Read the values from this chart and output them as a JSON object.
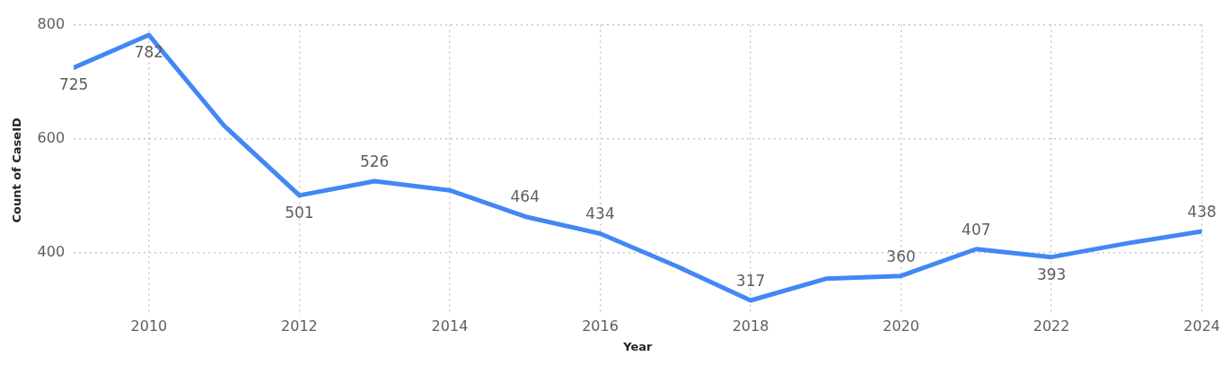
{
  "chart_data": {
    "type": "line",
    "xlabel": "Year",
    "ylabel": "Count of CaseID",
    "x": [
      2009,
      2010,
      2011,
      2012,
      2013,
      2014,
      2015,
      2016,
      2017,
      2018,
      2019,
      2020,
      2021,
      2022,
      2023,
      2024
    ],
    "series": [
      {
        "color": "#4287f5",
        "values": [
          725,
          782,
          623,
          501,
          526,
          510,
          464,
          434,
          378,
          317,
          355,
          360,
          407,
          393,
          417,
          438
        ],
        "value_labels": [
          "725",
          "782",
          null,
          "501",
          "526",
          null,
          "464",
          "434",
          null,
          "317",
          null,
          "360",
          "407",
          "393",
          null,
          "438"
        ]
      }
    ],
    "xlim": [
      2009,
      2024
    ],
    "xticks": [
      2010,
      2012,
      2014,
      2016,
      2018,
      2020,
      2022,
      2024
    ],
    "ylim": [
      290,
      800
    ],
    "yticks": [
      400,
      600,
      800
    ],
    "grid": true,
    "line_style": "solid",
    "marker": "none",
    "legend": false
  }
}
